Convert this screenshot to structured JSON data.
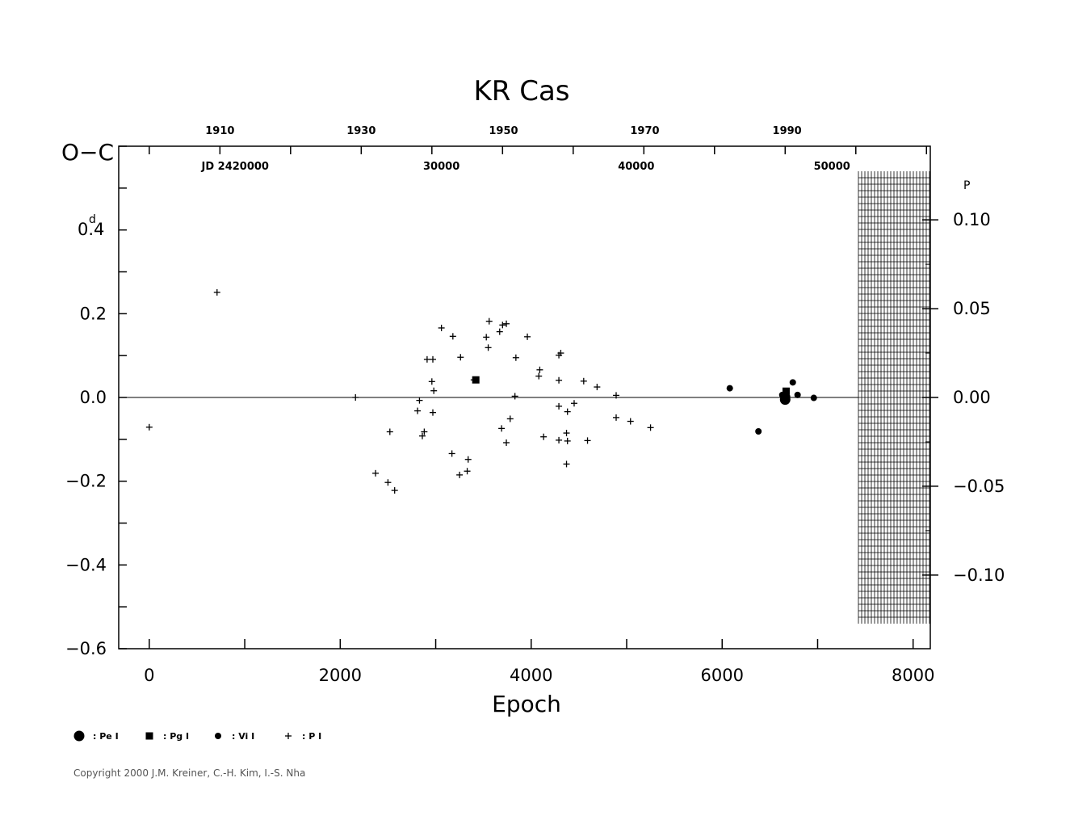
{
  "chart_data": {
    "type": "scatter",
    "title": "KR Cas",
    "xlabel": "Epoch",
    "ylabel": "O−C",
    "ylabel_unit_value": "0.4",
    "ylabel_unit_sup": "d",
    "right_axis_unit_sup": "P",
    "xlim": [
      -320,
      8180
    ],
    "ylim": [
      -0.6,
      0.6
    ],
    "x_ticks": [
      {
        "value": 0,
        "label": "0"
      },
      {
        "value": 2000,
        "label": "2000"
      },
      {
        "value": 4000,
        "label": "4000"
      },
      {
        "value": 6000,
        "label": "6000"
      },
      {
        "value": 8000,
        "label": "8000"
      }
    ],
    "y_ticks": [
      {
        "value": 0.2,
        "label": "0.2"
      },
      {
        "value": 0.0,
        "label": "0.0"
      },
      {
        "value": -0.2,
        "label": "−0.2"
      },
      {
        "value": -0.4,
        "label": "−0.4"
      },
      {
        "value": -0.6,
        "label": "−0.6"
      }
    ],
    "right_ticks": [
      {
        "value": 0.1,
        "label": "0.10"
      },
      {
        "value": 0.05,
        "label": "0.05"
      },
      {
        "value": 0.0,
        "label": "0.00"
      },
      {
        "value": -0.05,
        "label": "−0.05"
      },
      {
        "value": -0.1,
        "label": "−0.10"
      }
    ],
    "year_ticks": [
      {
        "epoch": 740,
        "label": "1910"
      },
      {
        "epoch": 2220,
        "label": "1930"
      },
      {
        "epoch": 3710,
        "label": "1950"
      },
      {
        "epoch": 5190,
        "label": "1970"
      },
      {
        "epoch": 6680,
        "label": "1990"
      }
    ],
    "jd_ticks": [
      {
        "epoch": 900,
        "label": "JD 2420000"
      },
      {
        "epoch": 3060,
        "label": "30000"
      },
      {
        "epoch": 5100,
        "label": "40000"
      },
      {
        "epoch": 7150,
        "label": "50000"
      }
    ],
    "grid": false,
    "reference_line": 0,
    "legend_position": "bottom-left",
    "series": [
      {
        "name": ": Pe I",
        "marker": "large-circle",
        "points": [
          [
            6660,
            -0.005
          ]
        ]
      },
      {
        "name": ": Pg I",
        "marker": "square",
        "points": [
          [
            3420,
            0.042
          ],
          [
            6670,
            0.015
          ]
        ]
      },
      {
        "name": ": Vi I",
        "marker": "small-circle",
        "points": [
          [
            6080,
            0.022
          ],
          [
            6380,
            -0.081
          ],
          [
            6630,
            0.006
          ],
          [
            6740,
            0.036
          ],
          [
            6790,
            0.006
          ],
          [
            6960,
            -0.001
          ],
          [
            6680,
            0.002
          ]
        ]
      },
      {
        "name": ": P I",
        "marker": "plus",
        "points": [
          [
            0,
            -0.071
          ],
          [
            710,
            0.251
          ],
          [
            2160,
            0.0
          ],
          [
            2370,
            -0.181
          ],
          [
            2500,
            -0.203
          ],
          [
            2520,
            -0.082
          ],
          [
            2570,
            -0.222
          ],
          [
            2810,
            -0.032
          ],
          [
            2830,
            -0.007
          ],
          [
            2860,
            -0.092
          ],
          [
            2880,
            -0.082
          ],
          [
            2910,
            0.091
          ],
          [
            2970,
            0.091
          ],
          [
            2960,
            0.038
          ],
          [
            2980,
            0.016
          ],
          [
            2970,
            -0.036
          ],
          [
            3060,
            0.166
          ],
          [
            3180,
            0.146
          ],
          [
            3170,
            -0.134
          ],
          [
            3260,
            0.096
          ],
          [
            3250,
            -0.185
          ],
          [
            3330,
            -0.176
          ],
          [
            3340,
            -0.148
          ],
          [
            3400,
            0.042
          ],
          [
            3530,
            0.144
          ],
          [
            3550,
            0.119
          ],
          [
            3560,
            0.182
          ],
          [
            3670,
            0.157
          ],
          [
            3700,
            0.173
          ],
          [
            3740,
            0.176
          ],
          [
            3690,
            -0.074
          ],
          [
            3740,
            -0.108
          ],
          [
            3780,
            -0.051
          ],
          [
            3830,
            0.003
          ],
          [
            3840,
            0.095
          ],
          [
            3960,
            0.145
          ],
          [
            4080,
            0.051
          ],
          [
            4090,
            0.066
          ],
          [
            4130,
            -0.094
          ],
          [
            4290,
            0.041
          ],
          [
            4290,
            0.101
          ],
          [
            4310,
            0.106
          ],
          [
            4290,
            -0.021
          ],
          [
            4290,
            -0.102
          ],
          [
            4380,
            -0.104
          ],
          [
            4370,
            -0.085
          ],
          [
            4380,
            -0.034
          ],
          [
            4370,
            -0.159
          ],
          [
            4450,
            -0.014
          ],
          [
            4550,
            0.039
          ],
          [
            4590,
            -0.103
          ],
          [
            4690,
            0.025
          ],
          [
            4890,
            0.005
          ],
          [
            4890,
            -0.048
          ],
          [
            5040,
            -0.057
          ],
          [
            5250,
            -0.072
          ]
        ]
      }
    ],
    "copyright": "Copyright 2000 J.M. Kreiner, C.-H. Kim, I.-S. Nha"
  }
}
